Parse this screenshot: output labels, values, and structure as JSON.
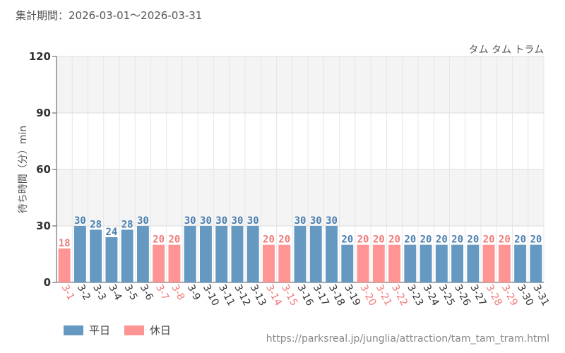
{
  "header": {
    "period": "集計期間：2026-03-01～2026-03-31"
  },
  "footer": {
    "source": "https://parksreal.jp/junglia/attraction/tam_tam_tram.html"
  },
  "chart_data": {
    "type": "bar",
    "title": "",
    "subtitle": "タム タム トラム",
    "xlabel": "",
    "ylabel": "待ち時間（分）min",
    "ylim": [
      0,
      120
    ],
    "yticks": [
      0,
      30,
      60,
      90,
      120
    ],
    "grid": true,
    "legend_position": "bottom-left",
    "colors": {
      "weekday": "#6699c2",
      "holiday": "#ff9494",
      "weekday_label": "#4a7fb0",
      "holiday_label": "#f07a7a"
    },
    "series": [
      {
        "name": "平日",
        "key": "weekday"
      },
      {
        "name": "休日",
        "key": "holiday"
      }
    ],
    "categories": [
      "3-1",
      "3-2",
      "3-3",
      "3-4",
      "3-5",
      "3-6",
      "3-7",
      "3-8",
      "3-9",
      "3-10",
      "3-11",
      "3-12",
      "3-13",
      "3-14",
      "3-15",
      "3-16",
      "3-17",
      "3-18",
      "3-19",
      "3-20",
      "3-21",
      "3-22",
      "3-23",
      "3-24",
      "3-25",
      "3-26",
      "3-27",
      "3-28",
      "3-29",
      "3-30",
      "3-31"
    ],
    "values": [
      18,
      30,
      28,
      24,
      28,
      30,
      20,
      20,
      30,
      30,
      30,
      30,
      30,
      20,
      20,
      30,
      30,
      30,
      20,
      20,
      20,
      20,
      20,
      20,
      20,
      20,
      20,
      20,
      20,
      20,
      20
    ],
    "day_type": [
      "holiday",
      "weekday",
      "weekday",
      "weekday",
      "weekday",
      "weekday",
      "holiday",
      "holiday",
      "weekday",
      "weekday",
      "weekday",
      "weekday",
      "weekday",
      "holiday",
      "holiday",
      "weekday",
      "weekday",
      "weekday",
      "weekday",
      "holiday",
      "holiday",
      "holiday",
      "weekday",
      "weekday",
      "weekday",
      "weekday",
      "weekday",
      "holiday",
      "holiday",
      "weekday",
      "weekday"
    ]
  }
}
